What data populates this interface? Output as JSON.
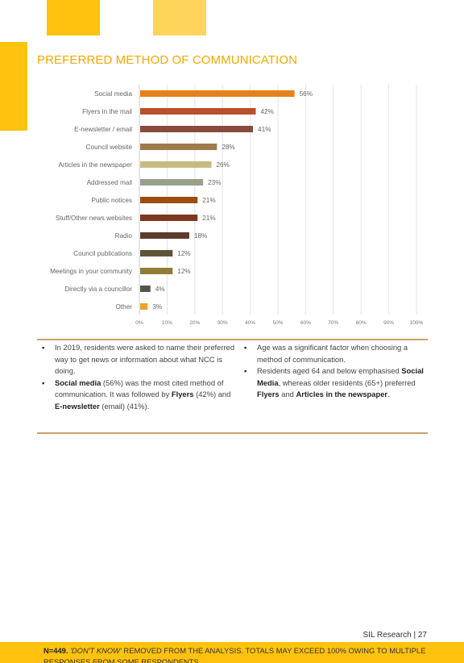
{
  "title": "PREFERRED METHOD OF COMMUNICATION",
  "chart_data": {
    "type": "bar",
    "orientation": "horizontal",
    "categories": [
      "Social media",
      "Flyers in the mail",
      "E-newsletter / email",
      "Council website",
      "Articles in the newspaper",
      "Addressed mail",
      "Public notices",
      "Stuff/Other news websites",
      "Radio",
      "Council publications",
      "Meetings in your community",
      "Directly via a councillor",
      "Other"
    ],
    "values": [
      56,
      42,
      41,
      28,
      26,
      23,
      21,
      21,
      18,
      12,
      12,
      4,
      3
    ],
    "value_labels": [
      "56%",
      "42%",
      "41%",
      "28%",
      "26%",
      "23%",
      "21%",
      "21%",
      "18%",
      "12%",
      "12%",
      "4%",
      "3%"
    ],
    "bar_colors": [
      "#E8801A",
      "#B8502C",
      "#8A4A3C",
      "#A07A4A",
      "#C6BC80",
      "#98A08A",
      "#9A4E12",
      "#7E3820",
      "#5E3A2A",
      "#5E5438",
      "#8E7C38",
      "#505848",
      "#F0A030"
    ],
    "xlim": [
      0,
      100
    ],
    "x_ticks": [
      "0%",
      "10%",
      "20%",
      "30%",
      "40%",
      "50%",
      "60%",
      "70%",
      "80%",
      "90%",
      "100%"
    ],
    "grid": true
  },
  "bullets_left": [
    {
      "parts": [
        {
          "t": "In 2019, residents were asked to name their preferred way to get news or information about what NCC is doing.",
          "b": false
        }
      ]
    },
    {
      "parts": [
        {
          "t": "Social media",
          "b": true
        },
        {
          "t": " (56%) was the most cited method of communication. It was followed by ",
          "b": false
        },
        {
          "t": "Flyers",
          "b": true
        },
        {
          "t": " (42%) and ",
          "b": false
        },
        {
          "t": "E-newsletter",
          "b": true
        },
        {
          "t": " (email) (41%).",
          "b": false
        }
      ]
    }
  ],
  "bullets_right": [
    {
      "parts": [
        {
          "t": "Age was a significant factor when choosing a method of communication.",
          "b": false
        }
      ]
    },
    {
      "parts": [
        {
          "t": "Residents aged 64 and below emphasised ",
          "b": false
        },
        {
          "t": "Social Media",
          "b": true
        },
        {
          "t": ", whereas older residents (65+) preferred ",
          "b": false
        },
        {
          "t": "Flyers",
          "b": true
        },
        {
          "t": " and ",
          "b": false
        },
        {
          "t": "Articles in the newspaper",
          "b": true
        },
        {
          "t": ".",
          "b": false
        }
      ]
    }
  ],
  "bullet_symbol": "•",
  "footer": {
    "page": "SIL Research | 27",
    "note_n": "N=449.",
    "note_dk": "'DON'T KNOW'",
    "note_rest": "REMOVED FROM THE ANALYSIS. TOTALS MAY EXCEED 100% OWING TO MULTIPLE RESPONSES FROM SOME RESPONDENTS."
  }
}
